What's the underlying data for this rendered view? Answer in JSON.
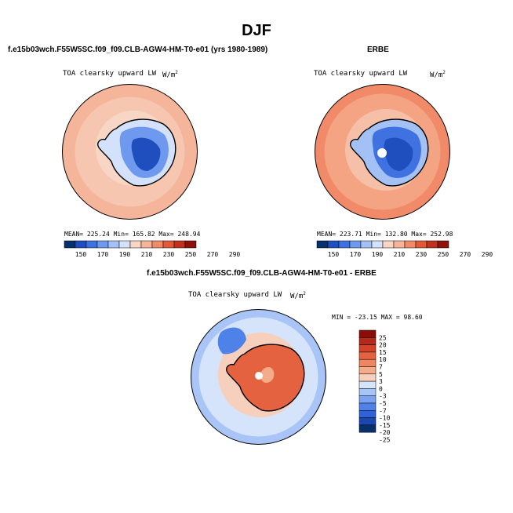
{
  "page_title": "DJF",
  "palette": [
    "#08306b",
    "#1f4fbf",
    "#3f72e0",
    "#6e99ee",
    "#a3c1f5",
    "#d3e2fa",
    "#f8d6c5",
    "#f6b59a",
    "#f08a68",
    "#e05a3a",
    "#c0321e",
    "#8e120a"
  ],
  "diff_palette": [
    "#08306b",
    "#1a48b0",
    "#2f62d8",
    "#4f82e8",
    "#7aa2f0",
    "#a9c4f6",
    "#d6e4fb",
    "#f6cfbd",
    "#f4ab8a",
    "#ee8660",
    "#e4623f",
    "#d2432a",
    "#b42a1a",
    "#8b0d0a"
  ],
  "panels": [
    {
      "title": "f.e15b03wch.F55W5SC.f09_f09.CLB-AGW4-HM-T0-e01 (yrs 1980-1989)",
      "variable": "TOA clearsky upward LW",
      "units": "W/m",
      "units_exp": "2",
      "mean_text": "MEAN= 225.24   Min= 165.82   Max= 248.94",
      "colorbar_ticks": [
        "150",
        "170",
        "190",
        "210",
        "230",
        "250",
        "270",
        "290"
      ]
    },
    {
      "title": "ERBE",
      "variable": "TOA clearsky upward LW",
      "units": "W/m",
      "units_exp": "2",
      "mean_text": "MEAN= 223.71   Min= 132.80   Max= 252.98",
      "colorbar_ticks": [
        "150",
        "170",
        "190",
        "210",
        "230",
        "250",
        "270",
        "290"
      ]
    }
  ],
  "difference": {
    "title": "f.e15b03wch.F55W5SC.f09_f09.CLB-AGW4-HM-T0-e01 - ERBE",
    "variable": "TOA clearsky upward LW",
    "units": "W/m",
    "units_exp": "2",
    "minmax_text": "MIN = -23.15  MAX =  98.60",
    "colorbar_labels": [
      "25",
      "20",
      "15",
      "10",
      "7",
      "5",
      "3",
      "0",
      "-3",
      "-5",
      "-7",
      "-10",
      "-15",
      "-20",
      "-25"
    ]
  }
}
